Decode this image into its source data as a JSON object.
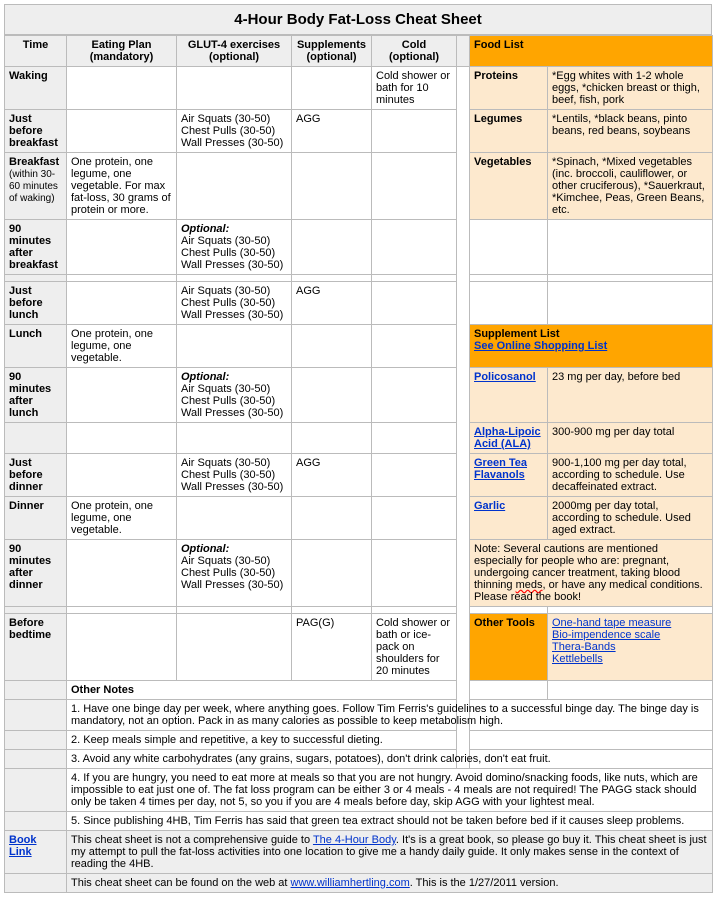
{
  "title": "4-Hour Body Fat-Loss Cheat Sheet",
  "headers": {
    "time": "Time",
    "eating": "Eating Plan (mandatory)",
    "glut4": "GLUT-4 exercises (optional)",
    "supplements": "Supplements (optional)",
    "cold": "Cold (optional)",
    "foodlist": "Food List"
  },
  "rows": {
    "waking": {
      "label": "Waking",
      "cold": "Cold shower or bath for 10 minutes"
    },
    "jbb": {
      "label": "Just before breakfast",
      "glut": "Air Squats (30-50)\nChest Pulls (30-50)\nWall Presses (30-50)",
      "supp": "AGG"
    },
    "breakfast": {
      "label": "Breakfast",
      "sub": "(within 30-60 minutes of waking)",
      "eating": "One protein, one legume, one vegetable. For max fat-loss, 30 grams of protein or more."
    },
    "ab90": {
      "label": "90 minutes after breakfast",
      "opt": "Optional:",
      "glut": "Air Squats (30-50)\nChest Pulls (30-50)\nWall Presses (30-50)"
    },
    "jbl": {
      "label": "Just before lunch",
      "glut": "Air Squats (30-50)\nChest Pulls (30-50)\nWall Presses (30-50)",
      "supp": "AGG"
    },
    "lunch": {
      "label": "Lunch",
      "eating": "One protein, one legume, one vegetable."
    },
    "al90": {
      "label": "90 minutes after lunch",
      "opt": "Optional:",
      "glut": "Air Squats (30-50)\nChest Pulls (30-50)\nWall Presses (30-50)"
    },
    "jbd": {
      "label": "Just before dinner",
      "glut": "Air Squats (30-50)\nChest Pulls (30-50)\nWall Presses (30-50)",
      "supp": "AGG"
    },
    "dinner": {
      "label": "Dinner",
      "eating": "One protein, one legume, one vegetable."
    },
    "ad90": {
      "label": "90 minutes after dinner",
      "opt": "Optional:",
      "glut": "Air Squats (30-50)\nChest Pulls (30-50)\nWall Presses (30-50)"
    },
    "bed": {
      "label": "Before bedtime",
      "supp": "PAG(G)",
      "cold": "Cold shower or bath or ice-pack on shoulders for 20 minutes"
    }
  },
  "food": {
    "proteins": {
      "cat": "Proteins",
      "desc": "*Egg whites with 1-2 whole eggs, *chicken breast or thigh, beef, fish, pork"
    },
    "legumes": {
      "cat": "Legumes",
      "desc": "*Lentils, *black beans, pinto beans, red beans, soybeans"
    },
    "vegetables": {
      "cat": "Vegetables",
      "desc": "*Spinach, *Mixed vegetables (inc. broccoli, cauliflower, or other cruciferous), *Sauerkraut, *Kimchee, Peas, Green Beans, etc."
    }
  },
  "supp": {
    "header": "Supplement List",
    "shoplink": "See Online Shopping List",
    "poli": {
      "name": "Policosanol",
      "dose": "23 mg per day, before bed"
    },
    "ala": {
      "name": "Alpha-Lipoic Acid (ALA)",
      "dose": "300-900 mg per day total"
    },
    "gtea": {
      "name": "Green Tea Flavanols",
      "dose": "900-1,100 mg per day total, according to schedule. Use decaffeinated extract."
    },
    "garlic": {
      "name": "Garlic",
      "dose": "2000mg per day total, according to schedule. Used aged extract."
    },
    "note1": "Note: Several cautions are mentioned especially for people who are: pregnant, undergoing cancer treatment, taking blood thinning ",
    "note2": "meds",
    "note3": ", or have any medical conditions. Please read the book!"
  },
  "tools": {
    "header": "Other Tools",
    "t1": "One-hand tape measure",
    "t2": "Bio-impendence scale",
    "t3": "Thera-Bands",
    "t4": "Kettlebells"
  },
  "notes": {
    "header": "Other Notes",
    "n1": "1. Have one binge day per week, where anything goes. Follow Tim Ferris's guidelines to a successful binge day. The binge day is mandatory, not an option. Pack in as many calories as possible to keep metabolism high.",
    "n2": "2. Keep meals simple and repetitive, a key to successful dieting.",
    "n3": "3. Avoid any white carbohydrates (any grains, sugars, potatoes), don't drink calories, don't eat fruit.",
    "n4": "4. If you are hungry, you need to eat more at meals so that you are not hungry. Avoid domino/snacking foods, like nuts, which are impossible to eat just one of. The fat loss program can be either 3 or 4 meals - 4 meals are not required! The PAGG stack should only be taken 4 times per day, not 5, so you if you are 4 meals before day, skip AGG with your lightest meal.",
    "n5": "5. Since publishing 4HB, Tim Ferris has said that green tea extract should not be taken before bed if it causes sleep problems."
  },
  "footer": {
    "booklink": "Book Link",
    "p1a": "This cheat sheet is not a comprehensive guide to ",
    "p1b": "The 4-Hour Body",
    "p1c": ". It's is a great book, so please go buy it. This cheat sheet is just my attempt to pull the fat-loss activities into one location to give me a handy daily guide. It only makes sense in the context of reading the 4HB.",
    "p2a": "This cheat sheet can be found on the web at ",
    "p2b": "www.williamhertling.com",
    "p2c": ". This is the 1/27/2011 version."
  }
}
